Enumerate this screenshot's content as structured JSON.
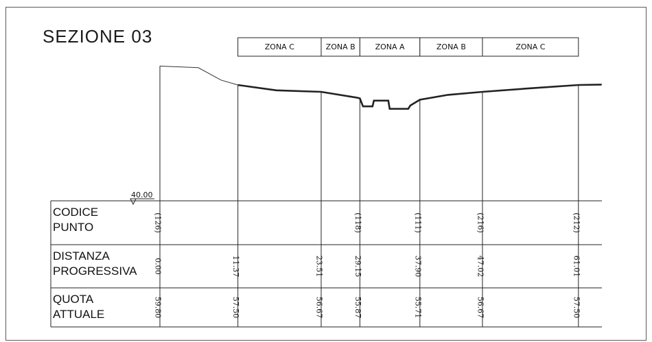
{
  "title": "SEZIONE 03",
  "datum": "40.00",
  "zones": [
    {
      "label": "ZONA C",
      "from": 11.37,
      "to": 23.51
    },
    {
      "label": "ZONA B",
      "from": 23.51,
      "to": 29.15
    },
    {
      "label": "ZONA A",
      "from": 29.15,
      "to": 37.9
    },
    {
      "label": "ZONA B",
      "from": 37.9,
      "to": 47.02
    },
    {
      "label": "ZONA C",
      "from": 47.02,
      "to": 61.01
    }
  ],
  "rows": [
    {
      "label": [
        "CODICE",
        "PUNTO"
      ]
    },
    {
      "label": [
        "DISTANZA",
        "PROGRESSIVA"
      ]
    },
    {
      "label": [
        "QUOTA",
        "ATTUALE"
      ]
    }
  ],
  "stations": [
    {
      "code": "(126)",
      "distance": "0.00",
      "elevation": "59.80",
      "x": 0.0
    },
    {
      "code": "",
      "distance": "11.37",
      "elevation": "57.50",
      "x": 11.37
    },
    {
      "code": "",
      "distance": "23.51",
      "elevation": "56.67",
      "x": 23.51
    },
    {
      "code": "(118)",
      "distance": "29.15",
      "elevation": "55.87",
      "x": 29.15
    },
    {
      "code": "(111)",
      "distance": "37.90",
      "elevation": "55.71",
      "x": 37.9
    },
    {
      "code": "(216)",
      "distance": "47.02",
      "elevation": "56.67",
      "x": 47.02
    },
    {
      "code": "(212)",
      "distance": "61.01",
      "elevation": "57.50",
      "x": 61.01
    }
  ],
  "chart_data": {
    "type": "line",
    "x_units": "distanza progressiva",
    "y_units": "quota",
    "baseline_elevation": 40.0,
    "profile": [
      {
        "x": 0.0,
        "y": 59.8
      },
      {
        "x": 5.6,
        "y": 59.6
      },
      {
        "x": 8.9,
        "y": 58.1
      },
      {
        "x": 11.37,
        "y": 57.5
      },
      {
        "x": 17.0,
        "y": 56.85
      },
      {
        "x": 23.51,
        "y": 56.67
      },
      {
        "x": 28.8,
        "y": 55.95
      },
      {
        "x": 29.15,
        "y": 55.87
      },
      {
        "x": 29.6,
        "y": 54.9
      },
      {
        "x": 31.0,
        "y": 54.9
      },
      {
        "x": 31.2,
        "y": 55.6
      },
      {
        "x": 33.3,
        "y": 55.6
      },
      {
        "x": 33.5,
        "y": 54.6
      },
      {
        "x": 36.2,
        "y": 54.6
      },
      {
        "x": 36.5,
        "y": 55.0
      },
      {
        "x": 37.9,
        "y": 55.71
      },
      {
        "x": 42.0,
        "y": 56.3
      },
      {
        "x": 47.02,
        "y": 56.67
      },
      {
        "x": 54.0,
        "y": 57.1
      },
      {
        "x": 61.01,
        "y": 57.5
      },
      {
        "x": 64.4,
        "y": 57.55
      }
    ]
  }
}
